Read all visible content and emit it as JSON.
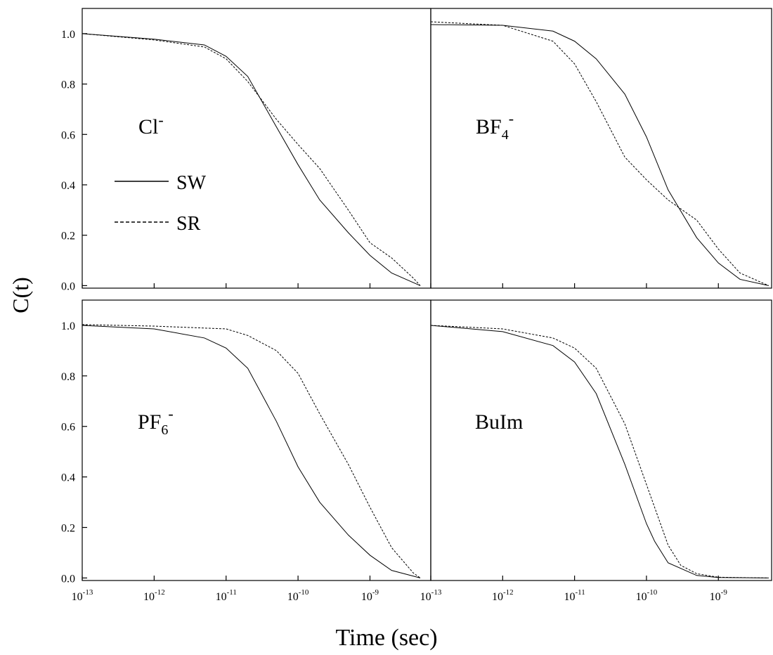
{
  "ylabel": "C(t)",
  "xlabel": "Time (sec)",
  "chart_data": [
    {
      "type": "line",
      "xscale": "log",
      "annotation": {
        "text": "Cl",
        "sup": "-"
      },
      "legend": "center-left",
      "xlim": [
        1e-13,
        7e-09
      ],
      "ylim": [
        -0.01,
        1.1
      ],
      "xticks": [
        1e-13,
        1e-12,
        1e-11,
        1e-10,
        1e-09
      ],
      "yticks": [
        {
          "value": 0,
          "label": "0.0"
        },
        0.2,
        0.4,
        0.6,
        0.8,
        {
          "value": 1,
          "label": "1.0"
        }
      ],
      "series": [
        {
          "name": "SW",
          "color": "#000000",
          "dash": false,
          "x": [
            1e-13,
            1e-12,
            5e-12,
            1e-11,
            2e-11,
            5e-11,
            1e-10,
            2e-10,
            5e-10,
            1e-09,
            2e-09,
            5e-09
          ],
          "values": [
            1.0,
            0.978,
            0.955,
            0.91,
            0.83,
            0.63,
            0.48,
            0.34,
            0.21,
            0.12,
            0.05,
            0.0
          ]
        },
        {
          "name": "SR",
          "color": "#000000",
          "dash": true,
          "x": [
            1e-13,
            1e-12,
            5e-12,
            1e-11,
            2e-11,
            5e-11,
            1e-10,
            2e-10,
            5e-10,
            1e-09,
            2e-09,
            4e-09,
            5e-09
          ],
          "values": [
            1.0,
            0.975,
            0.947,
            0.9,
            0.81,
            0.66,
            0.56,
            0.465,
            0.3,
            0.17,
            0.11,
            0.03,
            0.0
          ]
        }
      ]
    },
    {
      "type": "line",
      "xscale": "log",
      "annotation": {
        "text": "BF",
        "sub": "4",
        "sup": "-"
      },
      "xlim": [
        1e-13,
        5.5e-09
      ],
      "ylim": [
        -0.01,
        1.1
      ],
      "xticks": [
        1e-13,
        1e-12,
        1e-11,
        1e-10,
        1e-09
      ],
      "series": [
        {
          "name": "SW",
          "color": "#000000",
          "dash": false,
          "x": [
            1e-13,
            1e-12,
            5e-12,
            1e-11,
            2e-11,
            5e-11,
            1e-10,
            2e-10,
            5e-10,
            1e-09,
            2e-09,
            5e-09
          ],
          "values": [
            1.036,
            1.033,
            1.01,
            0.97,
            0.9,
            0.76,
            0.59,
            0.38,
            0.19,
            0.09,
            0.025,
            0.0
          ]
        },
        {
          "name": "SR",
          "color": "#000000",
          "dash": true,
          "x": [
            1e-13,
            1e-12,
            5e-12,
            1e-11,
            2e-11,
            5e-11,
            1e-10,
            2e-10,
            5e-10,
            1e-09,
            2e-09,
            5e-09
          ],
          "values": [
            1.047,
            1.033,
            0.97,
            0.88,
            0.73,
            0.51,
            0.42,
            0.34,
            0.26,
            0.145,
            0.05,
            0.0
          ]
        }
      ]
    },
    {
      "type": "line",
      "xscale": "log",
      "annotation": {
        "text": "PF",
        "sub": "6",
        "sup": "-"
      },
      "xlim": [
        1e-13,
        7e-09
      ],
      "ylim": [
        -0.01,
        1.1
      ],
      "xticks": [
        {
          "value": 1e-13,
          "label": "10",
          "sup": "-13"
        },
        {
          "value": 1e-12,
          "label": "10",
          "sup": "-12"
        },
        {
          "value": 1e-11,
          "label": "10",
          "sup": "-11"
        },
        {
          "value": 1e-10,
          "label": "10",
          "sup": "-10"
        },
        {
          "value": 1e-09,
          "label": "10",
          "sup": "-9"
        }
      ],
      "yticks": [
        {
          "value": 0,
          "label": "0.0"
        },
        0.2,
        0.4,
        0.6,
        0.8,
        {
          "value": 1,
          "label": "1.0"
        }
      ],
      "series": [
        {
          "name": "SW",
          "color": "#000000",
          "dash": false,
          "x": [
            1e-13,
            1e-12,
            5e-12,
            1e-11,
            2e-11,
            5e-11,
            1e-10,
            2e-10,
            5e-10,
            1e-09,
            2e-09,
            5e-09
          ],
          "values": [
            1.0,
            0.986,
            0.95,
            0.91,
            0.83,
            0.62,
            0.44,
            0.3,
            0.17,
            0.09,
            0.03,
            0.0
          ]
        },
        {
          "name": "SR",
          "color": "#000000",
          "dash": true,
          "x": [
            1e-13,
            1e-12,
            1e-11,
            2e-11,
            5e-11,
            1e-10,
            2e-10,
            5e-10,
            1e-09,
            2e-09,
            4e-09,
            5e-09
          ],
          "values": [
            1.003,
            0.997,
            0.986,
            0.96,
            0.9,
            0.81,
            0.65,
            0.45,
            0.28,
            0.12,
            0.02,
            0.0
          ]
        }
      ]
    },
    {
      "type": "line",
      "xscale": "log",
      "annotation": {
        "text": "BuIm"
      },
      "xlim": [
        1e-13,
        5.5e-09
      ],
      "ylim": [
        -0.01,
        1.1
      ],
      "xticks": [
        {
          "value": 1e-13,
          "label": "10",
          "sup": "-13"
        },
        {
          "value": 1e-12,
          "label": "10",
          "sup": "-12"
        },
        {
          "value": 1e-11,
          "label": "10",
          "sup": "-11"
        },
        {
          "value": 1e-10,
          "label": "10",
          "sup": "-10"
        },
        {
          "value": 1e-09,
          "label": "10",
          "sup": "-9"
        }
      ],
      "series": [
        {
          "name": "SW",
          "color": "#000000",
          "dash": false,
          "x": [
            1e-13,
            1e-12,
            5e-12,
            1e-11,
            2e-11,
            5e-11,
            1e-10,
            1.3e-10,
            2e-10,
            5e-10,
            1e-09,
            5e-09
          ],
          "values": [
            1.0,
            0.975,
            0.92,
            0.855,
            0.73,
            0.45,
            0.215,
            0.145,
            0.06,
            0.01,
            0.002,
            0.0
          ]
        },
        {
          "name": "SR",
          "color": "#000000",
          "dash": true,
          "x": [
            1e-13,
            1e-12,
            5e-12,
            1e-11,
            2e-11,
            5e-11,
            1e-10,
            2e-10,
            3e-10,
            5e-10,
            1e-09,
            5e-09
          ],
          "values": [
            1.0,
            0.986,
            0.95,
            0.91,
            0.83,
            0.61,
            0.37,
            0.13,
            0.05,
            0.017,
            0.003,
            0.0
          ]
        }
      ]
    }
  ]
}
